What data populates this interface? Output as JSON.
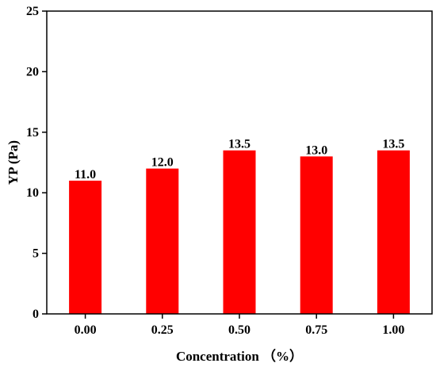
{
  "chart_data": {
    "type": "bar",
    "categories": [
      "0.00",
      "0.25",
      "0.50",
      "0.75",
      "1.00"
    ],
    "values": [
      11.0,
      12.0,
      13.5,
      13.0,
      13.5
    ],
    "data_labels": [
      "11.0",
      "12.0",
      "13.5",
      "13.0",
      "13.5"
    ],
    "title": "",
    "xlabel": "Concentration （%）",
    "ylabel": "YP (Pa)",
    "ylim": [
      0,
      25
    ],
    "yticks": [
      0,
      5,
      10,
      15,
      20,
      25
    ],
    "ytick_labels": [
      "0",
      "5",
      "10",
      "15",
      "20",
      "25"
    ],
    "bar_color": "#ff0000",
    "grid": false,
    "legend": "none"
  }
}
